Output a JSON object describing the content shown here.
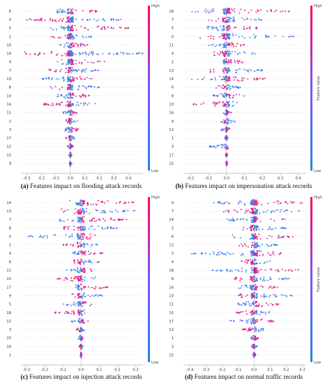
{
  "colors": {
    "low": "#1e88e5",
    "high": "#ff0051",
    "axis": "#999999"
  },
  "panels": [
    {
      "id": "a",
      "caption_label": "(a)",
      "caption_text": "Features impact on flooding attack records",
      "colorbar": {
        "high": "High",
        "low": "Low",
        "title": ""
      },
      "chart_data": {
        "type": "scatter",
        "subtype": "beeswarm",
        "features": [
          "6",
          "0",
          "5",
          "2",
          "16",
          "18",
          "4",
          "7",
          "13",
          "8",
          "10",
          "14",
          "11",
          "1",
          "3",
          "17",
          "12",
          "15",
          "9"
        ],
        "xlim": [
          -0.34,
          0.5
        ],
        "xticks": [
          -0.3,
          -0.2,
          -0.1,
          0.0,
          0.1,
          0.2,
          0.3,
          0.4
        ],
        "xlabel": "",
        "ranges": [
          [
            -0.1,
            0.2
          ],
          [
            -0.3,
            0.35
          ],
          [
            -0.15,
            0.4
          ],
          [
            -0.15,
            0.15
          ],
          [
            -0.08,
            0.12
          ],
          [
            -0.32,
            0.5
          ],
          [
            -0.1,
            0.25
          ],
          [
            -0.15,
            0.2
          ],
          [
            -0.2,
            0.15
          ],
          [
            -0.15,
            0.2
          ],
          [
            -0.1,
            0.15
          ],
          [
            -0.2,
            0.18
          ],
          [
            -0.05,
            0.05
          ],
          [
            -0.03,
            0.05
          ],
          [
            -0.04,
            0.06
          ],
          [
            -0.03,
            0.03
          ],
          [
            -0.02,
            0.02
          ],
          [
            -0.01,
            0.01
          ],
          [
            -0.01,
            0.01
          ]
        ]
      }
    },
    {
      "id": "b",
      "caption_label": "(b)",
      "caption_text": "Features impact on impersonation attack records",
      "colorbar": {
        "high": "High",
        "low": "Low",
        "title": "Feature value"
      },
      "chart_data": {
        "type": "scatter",
        "subtype": "beeswarm",
        "features": [
          "18",
          "7",
          "5",
          "0",
          "11",
          "4",
          "2",
          "13",
          "14",
          "6",
          "8",
          "10",
          "16",
          "9",
          "12",
          "1",
          "3",
          "17",
          "15"
        ],
        "xlim": [
          -0.24,
          0.44
        ],
        "xticks": [
          -0.2,
          -0.1,
          0.0,
          0.1,
          0.2,
          0.3,
          0.4
        ],
        "xlabel": "",
        "ranges": [
          [
            -0.2,
            0.35
          ],
          [
            -0.1,
            0.2
          ],
          [
            -0.12,
            0.2
          ],
          [
            -0.15,
            0.38
          ],
          [
            -0.1,
            0.1
          ],
          [
            -0.08,
            0.18
          ],
          [
            -0.05,
            0.1
          ],
          [
            -0.1,
            0.2
          ],
          [
            -0.2,
            0.22
          ],
          [
            -0.06,
            0.08
          ],
          [
            -0.08,
            0.1
          ],
          [
            -0.2,
            0.06
          ],
          [
            -0.02,
            0.03
          ],
          [
            -0.03,
            0.05
          ],
          [
            -0.03,
            0.02
          ],
          [
            -0.01,
            0.01
          ],
          [
            -0.1,
            0.01
          ],
          [
            -0.005,
            0.005
          ],
          [
            -0.005,
            0.005
          ]
        ]
      }
    },
    {
      "id": "c",
      "caption_label": "(c)",
      "caption_text": "Features impact on injection attack records",
      "colorbar": {
        "high": "High",
        "low": "Low",
        "title": ""
      },
      "chart_data": {
        "type": "scatter",
        "subtype": "beeswarm",
        "features": [
          "14",
          "13",
          "7",
          "8",
          "0",
          "2",
          "4",
          "6",
          "11",
          "10",
          "17",
          "9",
          "5",
          "18",
          "12",
          "3",
          "15",
          "16",
          "1"
        ],
        "xlim": [
          -0.33,
          0.34
        ],
        "xticks": [
          -0.3,
          -0.2,
          -0.1,
          0.0,
          0.1,
          0.2,
          0.3
        ],
        "xlabel": "",
        "ranges": [
          [
            -0.08,
            0.3
          ],
          [
            -0.12,
            0.3
          ],
          [
            -0.15,
            0.25
          ],
          [
            -0.12,
            0.2
          ],
          [
            -0.3,
            0.08
          ],
          [
            -0.1,
            0.1
          ],
          [
            -0.05,
            0.12
          ],
          [
            -0.04,
            0.1
          ],
          [
            -0.08,
            0.06
          ],
          [
            -0.15,
            0.08
          ],
          [
            -0.03,
            0.15
          ],
          [
            -0.05,
            0.12
          ],
          [
            -0.1,
            0.06
          ],
          [
            -0.15,
            0.04
          ],
          [
            -0.06,
            0.04
          ],
          [
            -0.03,
            0.02
          ],
          [
            -0.02,
            0.01
          ],
          [
            -0.01,
            0.01
          ],
          [
            -0.005,
            0.005
          ]
        ]
      }
    },
    {
      "id": "d",
      "caption_label": "(d)",
      "caption_text": "Features impact on normal traffic records",
      "colorbar": {
        "high": "High",
        "low": "Low",
        "title": "Feature value"
      },
      "chart_data": {
        "type": "scatter",
        "subtype": "beeswarm",
        "features": [
          "0",
          "7",
          "14",
          "2",
          "6",
          "13",
          "5",
          "4",
          "18",
          "8",
          "16",
          "10",
          "11",
          "15",
          "17",
          "12",
          "1",
          "3",
          "15"
        ],
        "xlim": [
          -0.44,
          0.32
        ],
        "xticks": [
          -0.4,
          -0.3,
          -0.2,
          -0.1,
          0.0,
          0.1,
          0.2,
          0.3
        ],
        "xlabel": "",
        "ranges": [
          [
            -0.25,
            0.3
          ],
          [
            -0.2,
            0.28
          ],
          [
            -0.2,
            0.2
          ],
          [
            -0.1,
            0.2
          ],
          [
            -0.15,
            0.25
          ],
          [
            -0.1,
            0.15
          ],
          [
            -0.4,
            0.18
          ],
          [
            -0.08,
            0.12
          ],
          [
            -0.3,
            0.28
          ],
          [
            -0.12,
            0.22
          ],
          [
            -0.1,
            0.15
          ],
          [
            -0.1,
            0.25
          ],
          [
            -0.1,
            0.15
          ],
          [
            -0.12,
            0.1
          ],
          [
            -0.15,
            0.12
          ],
          [
            -0.08,
            0.06
          ],
          [
            -0.03,
            0.03
          ],
          [
            -0.02,
            0.02
          ],
          [
            -0.01,
            0.01
          ]
        ]
      }
    }
  ]
}
